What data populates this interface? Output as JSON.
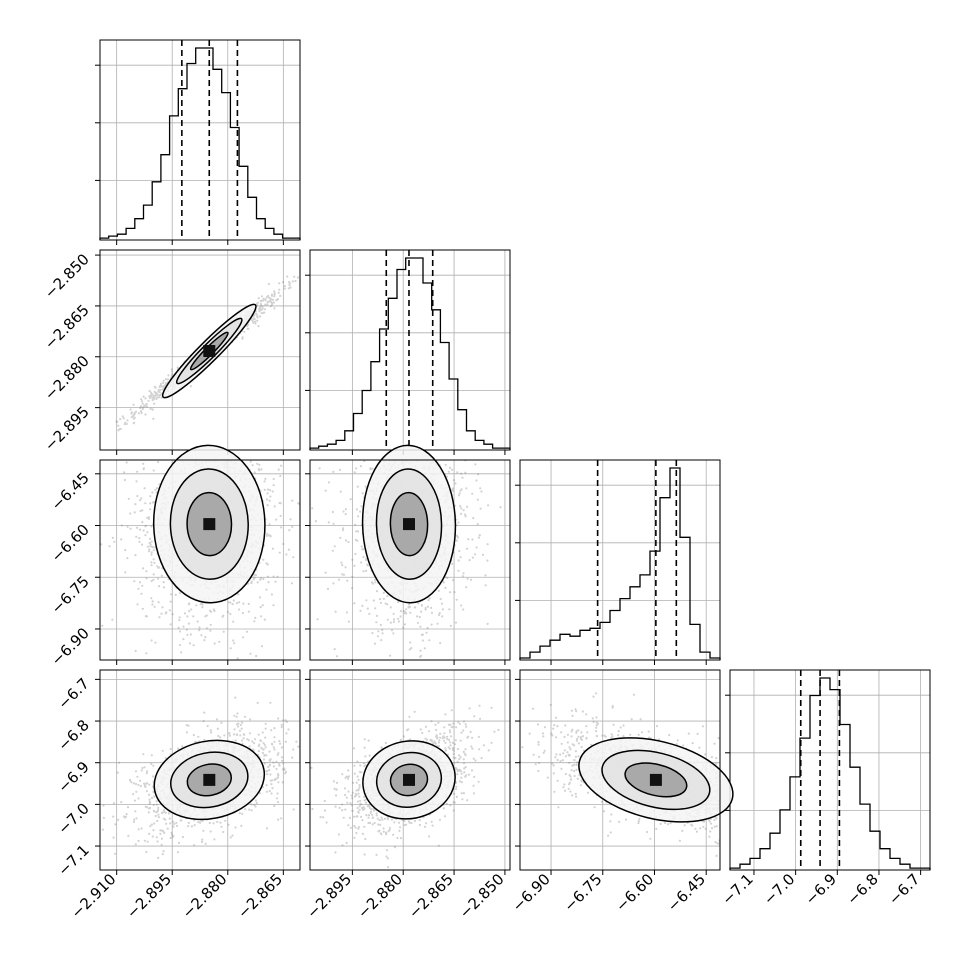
{
  "chart_data": {
    "type": "corner",
    "grid": true,
    "colors": {
      "line": "#000000",
      "grid": "#b0b0b0",
      "points": "#808080"
    },
    "quantiles": [
      0.16,
      0.5,
      0.84
    ],
    "parameters": [
      {
        "hist_range": [
          -2.9145,
          -2.8605
        ],
        "hist_counts": [
          1,
          2,
          3,
          6,
          11,
          18,
          30,
          44,
          64,
          78,
          91,
          99,
          99,
          88,
          76,
          58,
          38,
          22,
          11,
          6,
          3,
          1,
          1
        ],
        "quantile_values": [
          -2.8924,
          -2.885,
          -2.8774
        ],
        "x_ticks": [
          -2.91,
          -2.895,
          -2.88,
          -2.865
        ],
        "x_tick_labels": [
          "−2.910",
          "−2.895",
          "−2.880",
          "−2.865"
        ],
        "axis_range": [
          -2.9145,
          -2.8605
        ]
      },
      {
        "hist_range": [
          -2.9075,
          -2.8485
        ],
        "hist_counts": [
          1,
          2,
          3,
          5,
          10,
          19,
          31,
          46,
          63,
          79,
          94,
          100,
          100,
          87,
          73,
          56,
          37,
          21,
          10,
          5,
          3,
          1,
          1
        ],
        "quantile_values": [
          -2.885,
          -2.8783,
          -2.8713
        ],
        "x_ticks": [
          -2.895,
          -2.88,
          -2.865,
          -2.85
        ],
        "x_tick_labels": [
          "−2.895",
          "−2.880",
          "−2.865",
          "−2.850"
        ],
        "y_ticks": [
          -2.85,
          -2.865,
          -2.88,
          -2.895
        ],
        "y_tick_labels": [
          "−2.850",
          "−2.865",
          "−2.880",
          "−2.895"
        ],
        "axis_range": [
          -2.9075,
          -2.8485
        ]
      },
      {
        "hist_range": [
          -6.99,
          -6.41
        ],
        "hist_counts": [
          1,
          4,
          7,
          10,
          13,
          12,
          15,
          16,
          19,
          25,
          31,
          37,
          43,
          55,
          82,
          97,
          62,
          18,
          4,
          1
        ],
        "quantile_values": [
          -6.7649,
          -6.596,
          -6.5367
        ],
        "x_ticks": [
          -6.9,
          -6.75,
          -6.6,
          -6.45
        ],
        "x_tick_labels": [
          "−6.90",
          "−6.75",
          "−6.60",
          "−6.45"
        ],
        "y_ticks": [
          -6.45,
          -6.6,
          -6.75,
          -6.9
        ],
        "y_tick_labels": [
          "−6.45",
          "−6.60",
          "−6.75",
          "−6.90"
        ],
        "axis_range": [
          -6.99,
          -6.41
        ]
      },
      {
        "hist_range": [
          -7.1575,
          -6.6775
        ],
        "hist_counts": [
          1,
          3,
          6,
          11,
          19,
          31,
          48,
          68,
          90,
          99,
          93,
          75,
          53,
          34,
          20,
          11,
          6,
          3,
          1,
          1
        ],
        "quantile_values": [
          -6.9877,
          -6.9413,
          -6.8949
        ],
        "x_ticks": [
          -7.1,
          -7.0,
          -6.9,
          -6.8,
          -6.7
        ],
        "x_tick_labels": [
          "−7.1",
          "−7.0",
          "−6.9",
          "−6.8",
          "−6.7"
        ],
        "y_ticks": [
          -6.7,
          -6.8,
          -6.9,
          -7.0,
          -7.1
        ],
        "y_tick_labels": [
          "−6.7",
          "−6.8",
          "−6.9",
          "−7.0",
          "−7.1"
        ],
        "axis_range": [
          -7.1575,
          -6.6775
        ]
      }
    ]
  }
}
